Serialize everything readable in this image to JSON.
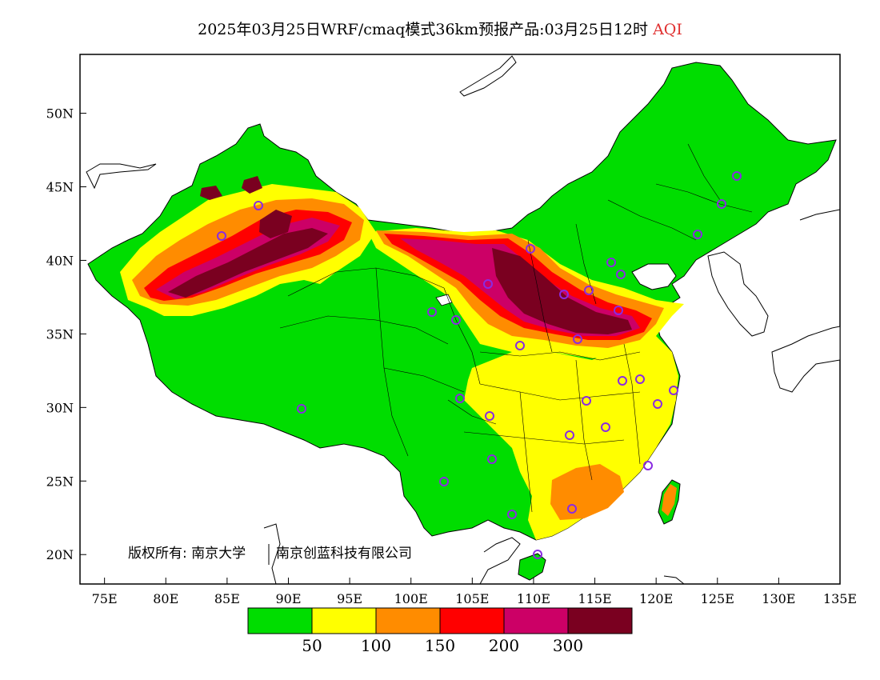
{
  "header": {
    "title_main": "2025年03月25日WRF/cmaq模式36km预报产品:03月25日12时",
    "title_var": "AQI",
    "title_var_color": "#e03030"
  },
  "axes": {
    "lon_ticks": [
      "75E",
      "80E",
      "85E",
      "90E",
      "95E",
      "100E",
      "105E",
      "110E",
      "115E",
      "120E",
      "125E",
      "130E",
      "135E"
    ],
    "lat_ticks": [
      "50N",
      "45N",
      "40N",
      "35N",
      "30N",
      "25N",
      "20N"
    ],
    "lon_range": [
      73,
      135
    ],
    "lat_range": [
      18,
      54
    ]
  },
  "legend": {
    "colors": [
      "#00dd00",
      "#ffff00",
      "#ff8c00",
      "#ff0000",
      "#cc0066",
      "#7a0020"
    ],
    "labels": [
      "50",
      "100",
      "150",
      "200",
      "300"
    ]
  },
  "copyright": {
    "left": "版权所有: 南京大学",
    "right": "南京创蓝科技有限公司"
  },
  "map_colors": {
    "water": "#ffffff",
    "border": "#000000",
    "station_marker": "#8a2be2"
  }
}
